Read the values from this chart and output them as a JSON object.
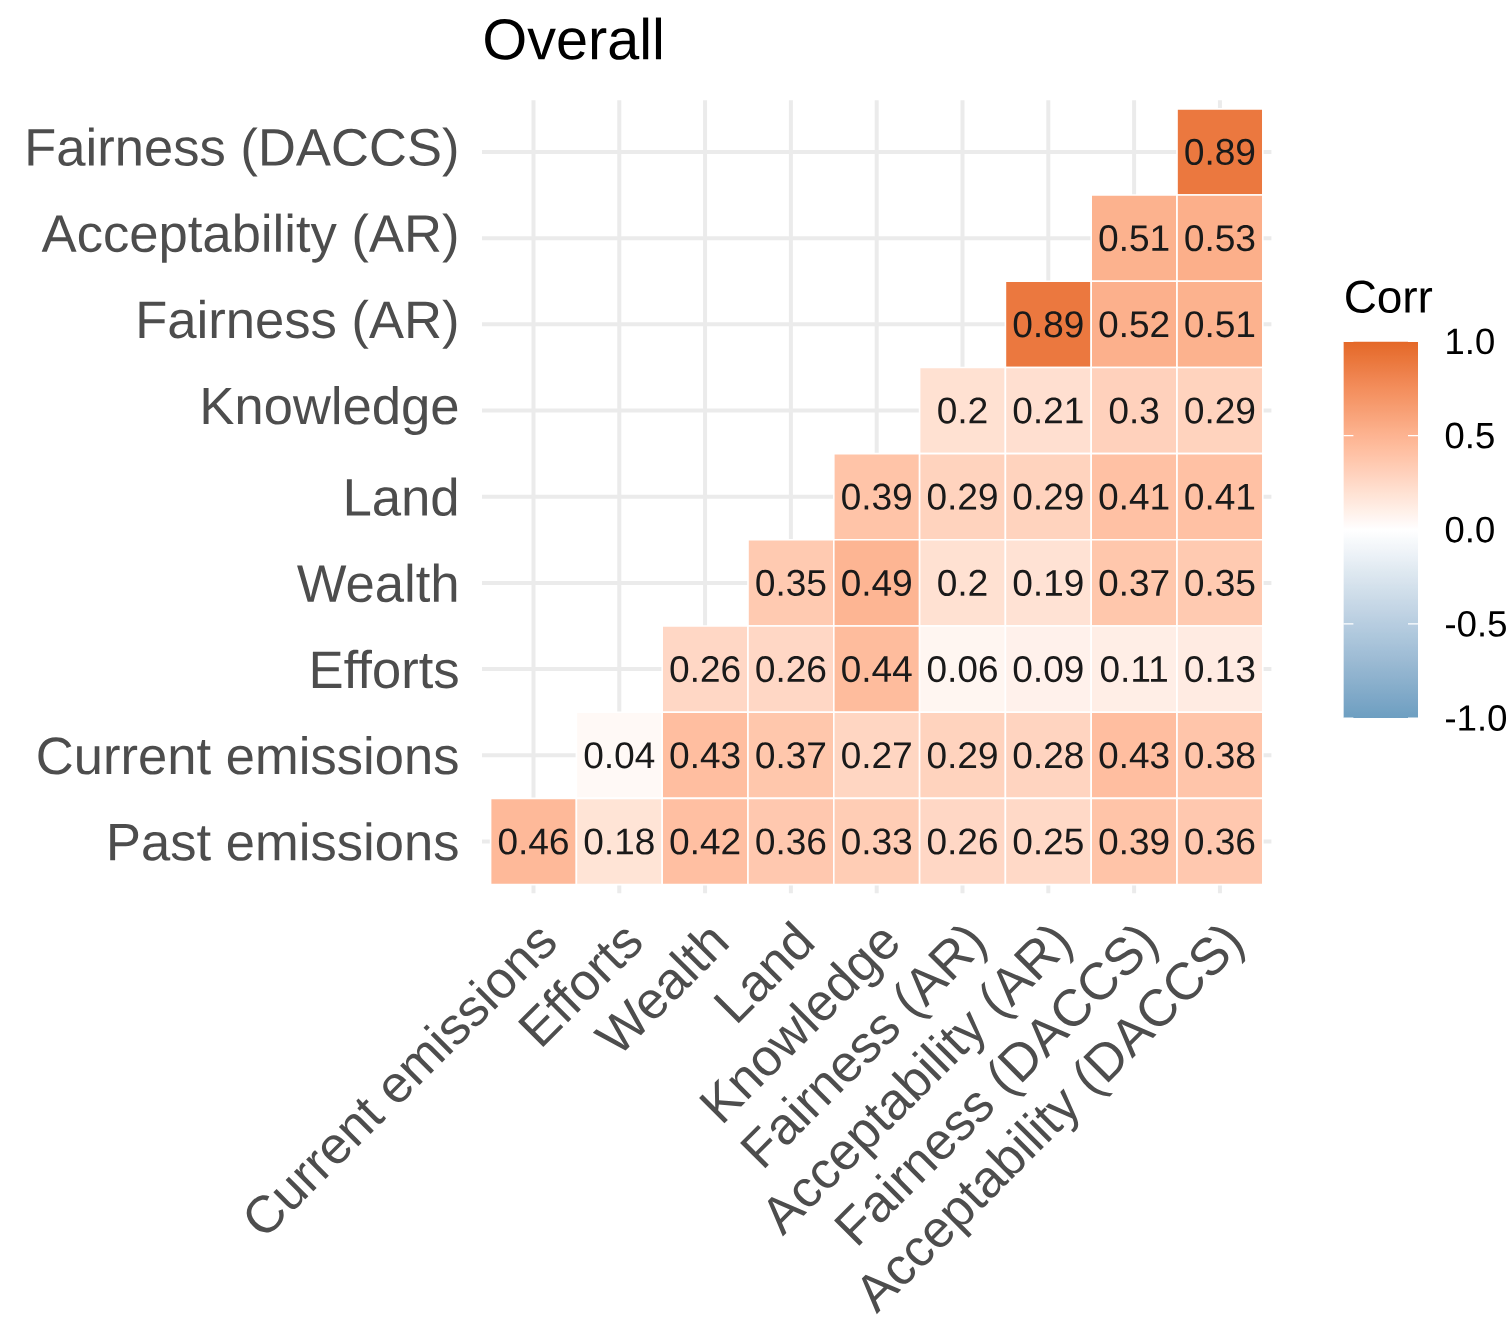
{
  "chart_data": {
    "type": "heatmap",
    "title": "Overall",
    "clabel": "Corr",
    "categories": [
      "Current emissions",
      "Efforts",
      "Wealth",
      "Land",
      "Knowledge",
      "Fairness (AR)",
      "Acceptability (AR)",
      "Fairness (DACCS)",
      "Acceptability (DACCS)"
    ],
    "y_categories": [
      "Fairness (DACCS)",
      "Acceptability (AR)",
      "Fairness (AR)",
      "Knowledge",
      "Land",
      "Wealth",
      "Efforts",
      "Current emissions",
      "Past emissions"
    ],
    "cells": [
      [
        null,
        null,
        null,
        null,
        null,
        null,
        null,
        null,
        0.89
      ],
      [
        null,
        null,
        null,
        null,
        null,
        null,
        null,
        0.51,
        0.53
      ],
      [
        null,
        null,
        null,
        null,
        null,
        null,
        0.89,
        0.52,
        0.51
      ],
      [
        null,
        null,
        null,
        null,
        null,
        0.2,
        0.21,
        0.3,
        0.29
      ],
      [
        null,
        null,
        null,
        null,
        0.39,
        0.29,
        0.29,
        0.41,
        0.41
      ],
      [
        null,
        null,
        null,
        0.35,
        0.49,
        0.2,
        0.19,
        0.37,
        0.35
      ],
      [
        null,
        null,
        0.26,
        0.26,
        0.44,
        0.06,
        0.09,
        0.11,
        0.13
      ],
      [
        null,
        0.04,
        0.43,
        0.37,
        0.27,
        0.29,
        0.28,
        0.43,
        0.38
      ],
      [
        0.46,
        0.18,
        0.42,
        0.36,
        0.33,
        0.26,
        0.25,
        0.39,
        0.36
      ]
    ],
    "clim": [
      -1,
      1
    ],
    "cticks": [
      {
        "value": 1,
        "label": "1.0"
      },
      {
        "value": 0.5,
        "label": "0.5"
      },
      {
        "value": 0,
        "label": "0.0"
      },
      {
        "value": -0.5,
        "label": "-0.5"
      },
      {
        "value": -1,
        "label": "-1.0"
      }
    ],
    "data_labels": true,
    "grid": true
  }
}
